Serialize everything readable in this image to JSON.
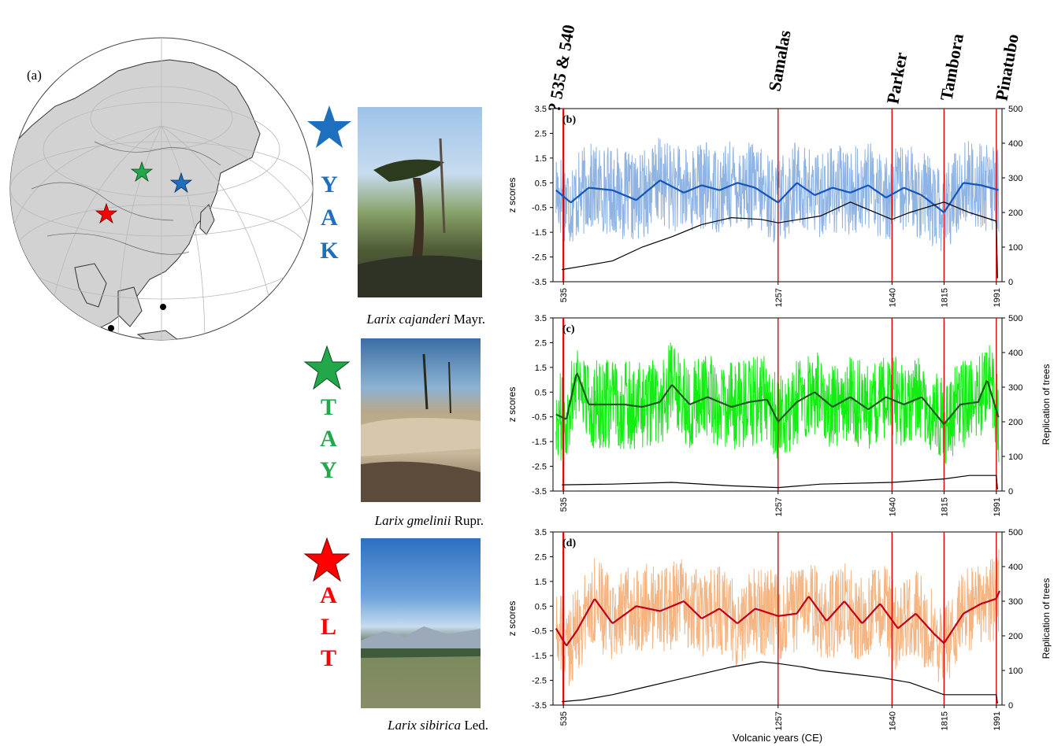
{
  "globe": {
    "panel_label": "(a)"
  },
  "sites": [
    {
      "code_letters": [
        "Y",
        "A",
        "K"
      ],
      "color": "#1f6fbf",
      "species": "Larix cajanderi",
      "authority": "Mayr."
    },
    {
      "code_letters": [
        "T",
        "A",
        "Y"
      ],
      "color": "#22a84a",
      "species": "Larix gmelinii",
      "authority": "Rupr."
    },
    {
      "code_letters": [
        "A",
        "L",
        "T"
      ],
      "color": "#ff0000",
      "species": "Larix sibirica",
      "authority": "Led."
    }
  ],
  "volcanoes": [
    {
      "label": "? 535 & 540",
      "year": 535
    },
    {
      "label": "Samalas",
      "year": 1257
    },
    {
      "label": "Parker",
      "year": 1640
    },
    {
      "label": "Tambora",
      "year": 1815
    },
    {
      "label": "Pinatubo",
      "year": 1991
    }
  ],
  "chart_data": [
    {
      "type": "line",
      "panel": "(b)",
      "ylabel": "z scores",
      "ylabel_right": "",
      "xlabel": "",
      "ylim": [
        -3.5,
        3.5
      ],
      "yticks": [
        "3.5",
        "2.5",
        "1.5",
        "0.5",
        "-0.5",
        "-1.5",
        "-2.5",
        "-3.5"
      ],
      "y2lim": [
        0,
        500
      ],
      "y2ticks": [
        "500",
        "400",
        "300",
        "200",
        "100",
        "0"
      ],
      "xticks": [
        "535",
        "1257",
        "1640",
        "1815",
        "1991"
      ],
      "xlim": [
        500,
        2010
      ],
      "colors": {
        "raw": "#8fb4e3",
        "smooth": "#1554b8",
        "replication": "#000000",
        "events": "#e00000"
      },
      "series": [
        {
          "kind": "smooth",
          "x": [
            510,
            560,
            620,
            700,
            780,
            860,
            940,
            1000,
            1060,
            1120,
            1180,
            1257,
            1320,
            1380,
            1440,
            1500,
            1560,
            1620,
            1680,
            1740,
            1815,
            1880,
            1940,
            2000
          ],
          "y": [
            0.2,
            -0.3,
            0.3,
            0.2,
            -0.2,
            0.6,
            0.1,
            0.4,
            0.2,
            0.5,
            0.3,
            -0.3,
            0.5,
            0.0,
            0.3,
            0.1,
            0.4,
            -0.1,
            0.3,
            0.0,
            -0.7,
            0.5,
            0.4,
            0.2
          ]
        },
        {
          "kind": "replication",
          "x": [
            530,
            600,
            700,
            800,
            900,
            1000,
            1100,
            1200,
            1257,
            1400,
            1500,
            1640,
            1700,
            1815,
            1900,
            1991,
            1995
          ],
          "y": [
            35,
            45,
            60,
            100,
            130,
            165,
            185,
            180,
            170,
            190,
            230,
            180,
            200,
            230,
            200,
            175,
            10
          ]
        }
      ]
    },
    {
      "type": "line",
      "panel": "(c)",
      "ylabel": "z scores",
      "ylabel_right": "Replication of trees",
      "xlabel": "",
      "ylim": [
        -3.5,
        3.5
      ],
      "yticks": [
        "3.5",
        "2.5",
        "1.5",
        "0.5",
        "-0.5",
        "-1.5",
        "-2.5",
        "-3.5"
      ],
      "y2lim": [
        0,
        500
      ],
      "y2ticks": [
        "500",
        "400",
        "300",
        "200",
        "100",
        "0"
      ],
      "xticks": [
        "535",
        "1257",
        "1640",
        "1815",
        "1991"
      ],
      "xlim": [
        500,
        2010
      ],
      "colors": {
        "raw": "#12ee12",
        "smooth": "#1a5a1a",
        "replication": "#000000",
        "events": "#e00000"
      },
      "series": [
        {
          "kind": "smooth",
          "x": [
            510,
            545,
            580,
            620,
            680,
            740,
            800,
            860,
            900,
            960,
            1020,
            1100,
            1160,
            1220,
            1257,
            1320,
            1380,
            1440,
            1500,
            1560,
            1620,
            1680,
            1740,
            1815,
            1870,
            1930,
            1960,
            2000
          ],
          "y": [
            -0.4,
            -0.6,
            1.3,
            0.0,
            0.0,
            0.0,
            -0.1,
            0.1,
            0.8,
            0.0,
            0.3,
            -0.1,
            0.1,
            0.2,
            -0.7,
            0.1,
            0.5,
            -0.1,
            0.3,
            -0.2,
            0.3,
            0.0,
            0.3,
            -0.8,
            0.0,
            0.1,
            1.0,
            -0.6
          ]
        },
        {
          "kind": "replication",
          "x": [
            530,
            700,
            900,
            1100,
            1257,
            1400,
            1640,
            1815,
            1900,
            1991,
            1995
          ],
          "y": [
            18,
            20,
            25,
            15,
            10,
            20,
            25,
            35,
            45,
            45,
            5
          ]
        }
      ]
    },
    {
      "type": "line",
      "panel": "(d)",
      "ylabel": "z scores",
      "ylabel_right": "Replication of trees",
      "xlabel": "Volcanic years (CE)",
      "ylim": [
        -3.5,
        3.5
      ],
      "yticks": [
        "3.5",
        "2.5",
        "1.5",
        "0.5",
        "-0.5",
        "-1.5",
        "-2.5",
        "-3.5"
      ],
      "y2lim": [
        0,
        500
      ],
      "y2ticks": [
        "500",
        "400",
        "300",
        "200",
        "100",
        "0"
      ],
      "xticks": [
        "535",
        "1257",
        "1640",
        "1815",
        "1991"
      ],
      "xlim": [
        500,
        2010
      ],
      "colors": {
        "raw": "#f4b582",
        "smooth": "#c0001a",
        "replication": "#000000",
        "events": "#e00000"
      },
      "series": [
        {
          "kind": "smooth",
          "x": [
            510,
            545,
            580,
            640,
            700,
            780,
            860,
            940,
            1000,
            1060,
            1120,
            1180,
            1257,
            1320,
            1360,
            1420,
            1480,
            1540,
            1600,
            1660,
            1720,
            1780,
            1815,
            1880,
            1940,
            1990,
            2005
          ],
          "y": [
            -0.4,
            -1.1,
            -0.5,
            0.8,
            -0.2,
            0.5,
            0.3,
            0.7,
            0.0,
            0.4,
            -0.2,
            0.4,
            0.1,
            0.2,
            0.9,
            -0.1,
            0.7,
            -0.2,
            0.6,
            -0.4,
            0.2,
            -0.6,
            -1.0,
            0.2,
            0.6,
            0.8,
            1.2
          ]
        },
        {
          "kind": "replication",
          "x": [
            530,
            600,
            700,
            800,
            900,
            1000,
            1100,
            1200,
            1257,
            1340,
            1400,
            1500,
            1600,
            1700,
            1815,
            1900,
            1991,
            1995
          ],
          "y": [
            10,
            15,
            30,
            50,
            70,
            90,
            110,
            125,
            120,
            110,
            100,
            90,
            80,
            65,
            30,
            30,
            30,
            5
          ]
        }
      ]
    }
  ]
}
